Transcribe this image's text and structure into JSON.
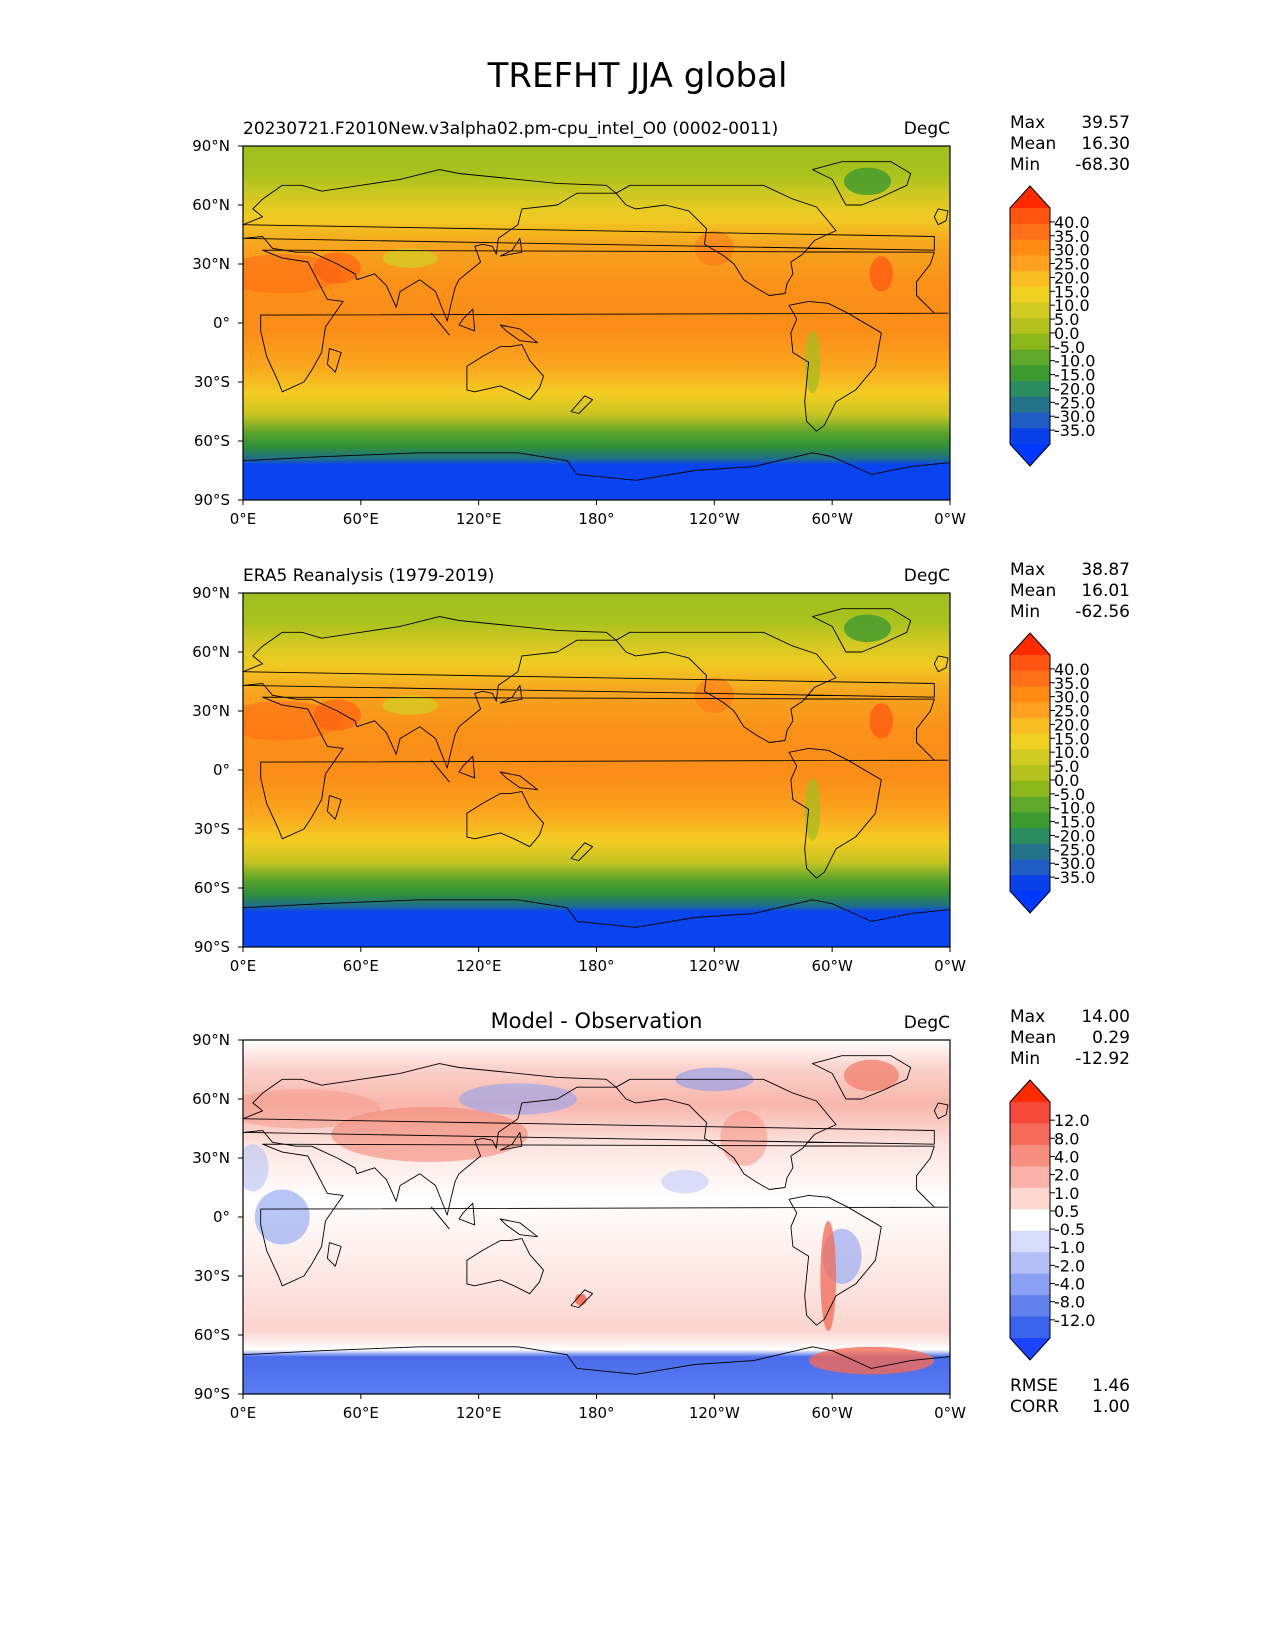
{
  "figure": {
    "title": "TREFHT JJA global"
  },
  "chart_data": [
    {
      "type": "heatmap",
      "title": "20230721.F2010New.v3alpha02.pm-cpu_intel_O0 (0002-0011)",
      "title_position": "left",
      "units": "DegC",
      "x_ticks": [
        "0°E",
        "60°E",
        "120°E",
        "180°",
        "120°W",
        "60°W",
        "0°W"
      ],
      "y_ticks": [
        "90°N",
        "60°N",
        "30°N",
        "0°",
        "30°S",
        "60°S",
        "90°S"
      ],
      "xlim": [
        0,
        360
      ],
      "ylim": [
        -90,
        90
      ],
      "stats": [
        {
          "label": "Max",
          "value": "39.57"
        },
        {
          "label": "Mean",
          "value": "16.30"
        },
        {
          "label": "Min",
          "value": "-68.30"
        }
      ],
      "colorbar": {
        "levels": [
          "40.0",
          "35.0",
          "30.0",
          "25.0",
          "20.0",
          "15.0",
          "10.0",
          "5.0",
          "0.0",
          "-5.0",
          "-10.0",
          "-15.0",
          "-20.0",
          "-25.0",
          "-30.0",
          "-35.0"
        ],
        "colors": [
          "#ff2a00",
          "#ff5510",
          "#ff7018",
          "#ff8a10",
          "#ffa020",
          "#f9bd22",
          "#f0d020",
          "#d2cc22",
          "#b4c21e",
          "#8cb81c",
          "#5fa82a",
          "#3d9a30",
          "#2b8d5f",
          "#247289",
          "#1f5cc4",
          "#0a40e8",
          "#0038ff"
        ]
      }
    },
    {
      "type": "heatmap",
      "title": "ERA5 Reanalysis (1979-2019)",
      "title_position": "left",
      "units": "DegC",
      "x_ticks": [
        "0°E",
        "60°E",
        "120°E",
        "180°",
        "120°W",
        "60°W",
        "0°W"
      ],
      "y_ticks": [
        "90°N",
        "60°N",
        "30°N",
        "0°",
        "30°S",
        "60°S",
        "90°S"
      ],
      "xlim": [
        0,
        360
      ],
      "ylim": [
        -90,
        90
      ],
      "stats": [
        {
          "label": "Max",
          "value": "38.87"
        },
        {
          "label": "Mean",
          "value": "16.01"
        },
        {
          "label": "Min",
          "value": "-62.56"
        }
      ],
      "colorbar": {
        "levels": [
          "40.0",
          "35.0",
          "30.0",
          "25.0",
          "20.0",
          "15.0",
          "10.0",
          "5.0",
          "0.0",
          "-5.0",
          "-10.0",
          "-15.0",
          "-20.0",
          "-25.0",
          "-30.0",
          "-35.0"
        ],
        "colors": [
          "#ff2a00",
          "#ff5510",
          "#ff7018",
          "#ff8a10",
          "#ffa020",
          "#f9bd22",
          "#f0d020",
          "#d2cc22",
          "#b4c21e",
          "#8cb81c",
          "#5fa82a",
          "#3d9a30",
          "#2b8d5f",
          "#247289",
          "#1f5cc4",
          "#0a40e8",
          "#0038ff"
        ]
      }
    },
    {
      "type": "heatmap",
      "title": "Model - Observation",
      "title_position": "center",
      "units": "DegC",
      "x_ticks": [
        "0°E",
        "60°E",
        "120°E",
        "180°",
        "120°W",
        "60°W",
        "0°W"
      ],
      "y_ticks": [
        "90°N",
        "60°N",
        "30°N",
        "0°",
        "30°S",
        "60°S",
        "90°S"
      ],
      "xlim": [
        0,
        360
      ],
      "ylim": [
        -90,
        90
      ],
      "stats": [
        {
          "label": "Max",
          "value": "14.00"
        },
        {
          "label": "Mean",
          "value": "0.29"
        },
        {
          "label": "Min",
          "value": "-12.92"
        }
      ],
      "extra_stats": [
        {
          "label": "RMSE",
          "value": "1.46"
        },
        {
          "label": "CORR",
          "value": "1.00"
        }
      ],
      "colorbar": {
        "levels": [
          "12.0",
          "8.0",
          "4.0",
          "2.0",
          "1.0",
          "0.5",
          "-0.5",
          "-1.0",
          "-2.0",
          "-4.0",
          "-8.0",
          "-12.0"
        ],
        "colors": [
          "#ff2a00",
          "#f5493a",
          "#f56a5a",
          "#f88e80",
          "#fab2a8",
          "#fdd6d0",
          "#ffffff",
          "#d8dcfc",
          "#b4bff8",
          "#8aa0f4",
          "#6080ee",
          "#3a62ea",
          "#1a44ff"
        ]
      }
    }
  ]
}
